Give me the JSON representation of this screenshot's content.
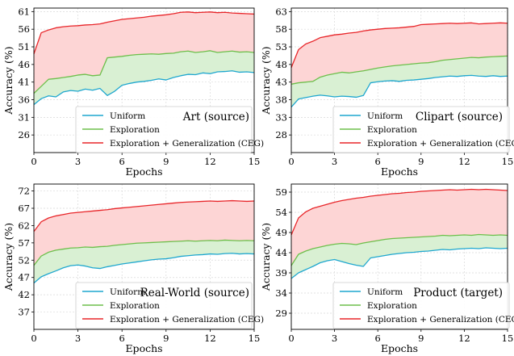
{
  "colors": {
    "uniform": "#1fa7cf",
    "exploration": "#6dbf4b",
    "ceg": "#e8262a",
    "fill_upper": "#fdd5d5",
    "fill_lower": "#d9f0d3"
  },
  "chart_data": [
    {
      "type": "line",
      "title": "Art (source)",
      "xlabel": "Epochs",
      "ylabel": "Accuracy (%)",
      "xlim": [
        0,
        15
      ],
      "ylim": [
        21,
        62
      ],
      "xticks": [
        0,
        3,
        6,
        9,
        12,
        15
      ],
      "yticks": [
        26,
        31,
        36,
        41,
        46,
        51,
        56,
        61
      ],
      "grid": true,
      "legend_position": "lower-left",
      "fill_between_series": true,
      "series": [
        {
          "name": "Uniform",
          "color_key": "uniform",
          "x": [
            0,
            0.5,
            1,
            1.5,
            2,
            2.5,
            3,
            3.5,
            4,
            4.5,
            5,
            5.5,
            6,
            6.5,
            7,
            7.5,
            8,
            8.5,
            9,
            9.5,
            10,
            10.5,
            11,
            11.5,
            12,
            12.5,
            13,
            13.5,
            14,
            14.5,
            15
          ],
          "y": [
            34.6,
            36.3,
            37.1,
            36.8,
            38.2,
            38.6,
            38.4,
            39.0,
            38.7,
            39.2,
            37.2,
            38.4,
            40.1,
            40.6,
            41.0,
            41.2,
            41.5,
            41.9,
            41.6,
            42.3,
            42.8,
            43.2,
            43.1,
            43.6,
            43.4,
            43.9,
            44.0,
            44.2,
            43.8,
            43.9,
            43.7
          ]
        },
        {
          "name": "Exploration",
          "color_key": "exploration",
          "x": [
            0,
            0.5,
            1,
            1.5,
            2,
            2.5,
            3,
            3.5,
            4,
            4.5,
            5,
            5.5,
            6,
            6.5,
            7,
            7.5,
            8,
            8.5,
            9,
            9.5,
            10,
            10.5,
            11,
            11.5,
            12,
            12.5,
            13,
            13.5,
            14,
            14.5,
            15
          ],
          "y": [
            37.8,
            39.8,
            41.8,
            42.0,
            42.3,
            42.6,
            43.0,
            43.2,
            42.8,
            43.0,
            47.9,
            48.1,
            48.3,
            48.6,
            48.8,
            48.9,
            49.0,
            48.9,
            49.1,
            49.2,
            49.6,
            49.8,
            49.4,
            49.6,
            49.9,
            49.4,
            49.6,
            49.8,
            49.5,
            49.6,
            49.4
          ]
        },
        {
          "name": "Exploration + Generalization (CEG)",
          "color_key": "ceg",
          "x": [
            0,
            0.5,
            1,
            1.5,
            2,
            2.5,
            3,
            3.5,
            4,
            4.5,
            5,
            5.5,
            6,
            6.5,
            7,
            7.5,
            8,
            8.5,
            9,
            9.5,
            10,
            10.5,
            11,
            11.5,
            12,
            12.5,
            13,
            13.5,
            14,
            14.5,
            15
          ],
          "y": [
            49.0,
            55.0,
            55.8,
            56.4,
            56.7,
            56.9,
            57.0,
            57.2,
            57.3,
            57.5,
            58.0,
            58.4,
            58.8,
            59.0,
            59.2,
            59.4,
            59.7,
            59.9,
            60.1,
            60.4,
            60.8,
            60.9,
            60.7,
            60.8,
            60.9,
            60.7,
            60.8,
            60.6,
            60.5,
            60.4,
            60.3
          ]
        }
      ]
    },
    {
      "type": "line",
      "title": "Clipart (source)",
      "xlabel": "Epochs",
      "ylabel": "Accuracy (%)",
      "xlim": [
        0,
        15
      ],
      "ylim": [
        23,
        64
      ],
      "xticks": [
        0,
        3,
        6,
        9,
        12,
        15
      ],
      "yticks": [
        28,
        33,
        38,
        43,
        48,
        53,
        58,
        63
      ],
      "grid": true,
      "legend_position": "lower-left",
      "fill_between_series": true,
      "series": [
        {
          "name": "Uniform",
          "color_key": "uniform",
          "x": [
            0,
            0.5,
            1,
            1.5,
            2,
            2.5,
            3,
            3.5,
            4,
            4.5,
            5,
            5.5,
            6,
            6.5,
            7,
            7.5,
            8,
            8.5,
            9,
            9.5,
            10,
            10.5,
            11,
            11.5,
            12,
            12.5,
            13,
            13.5,
            14,
            14.5,
            15
          ],
          "y": [
            35.9,
            38.2,
            38.6,
            39.0,
            39.3,
            39.1,
            38.8,
            39.0,
            38.9,
            38.7,
            39.2,
            42.8,
            43.1,
            43.3,
            43.4,
            43.2,
            43.5,
            43.6,
            43.8,
            44.0,
            44.3,
            44.5,
            44.7,
            44.6,
            44.8,
            44.9,
            44.7,
            44.6,
            44.8,
            44.6,
            44.7
          ]
        },
        {
          "name": "Exploration",
          "color_key": "exploration",
          "x": [
            0,
            0.5,
            1,
            1.5,
            2,
            2.5,
            3,
            3.5,
            4,
            4.5,
            5,
            5.5,
            6,
            6.5,
            7,
            7.5,
            8,
            8.5,
            9,
            9.5,
            10,
            10.5,
            11,
            11.5,
            12,
            12.5,
            13,
            13.5,
            14,
            14.5,
            15
          ],
          "y": [
            42.4,
            42.8,
            43.0,
            43.2,
            44.4,
            45.0,
            45.4,
            45.8,
            45.6,
            45.9,
            46.2,
            46.6,
            47.0,
            47.3,
            47.6,
            47.8,
            48.0,
            48.2,
            48.4,
            48.5,
            48.8,
            49.2,
            49.4,
            49.6,
            49.8,
            50.0,
            49.9,
            50.1,
            50.2,
            50.3,
            50.4
          ]
        },
        {
          "name": "Exploration + Generalization (CEG)",
          "color_key": "ceg",
          "x": [
            0,
            0.5,
            1,
            1.5,
            2,
            2.5,
            3,
            3.5,
            4,
            4.5,
            5,
            5.5,
            6,
            6.5,
            7,
            7.5,
            8,
            8.5,
            9,
            9.5,
            10,
            10.5,
            11,
            11.5,
            12,
            12.5,
            13,
            13.5,
            14,
            14.5,
            15
          ],
          "y": [
            47.1,
            52.2,
            53.8,
            54.6,
            55.6,
            56.0,
            56.4,
            56.6,
            56.9,
            57.1,
            57.5,
            57.8,
            58.0,
            58.2,
            58.3,
            58.4,
            58.6,
            58.8,
            59.3,
            59.4,
            59.5,
            59.6,
            59.7,
            59.6,
            59.7,
            59.8,
            59.5,
            59.6,
            59.7,
            59.8,
            59.7
          ]
        }
      ]
    },
    {
      "type": "line",
      "title": "Real-World (source)",
      "xlabel": "Epochs",
      "ylabel": "Accuracy (%)",
      "xlim": [
        0,
        15
      ],
      "ylim": [
        32,
        74
      ],
      "xticks": [
        0,
        3,
        6,
        9,
        12,
        15
      ],
      "yticks": [
        37,
        42,
        47,
        52,
        57,
        62,
        67,
        72
      ],
      "grid": true,
      "legend_position": "lower-left",
      "fill_between_series": true,
      "series": [
        {
          "name": "Uniform",
          "color_key": "uniform",
          "x": [
            0,
            0.5,
            1,
            1.5,
            2,
            2.5,
            3,
            3.5,
            4,
            4.5,
            5,
            5.5,
            6,
            6.5,
            7,
            7.5,
            8,
            8.5,
            9,
            9.5,
            10,
            10.5,
            11,
            11.5,
            12,
            12.5,
            13,
            13.5,
            14,
            14.5,
            15
          ],
          "y": [
            45.4,
            47.2,
            48.1,
            48.9,
            49.8,
            50.4,
            50.6,
            50.3,
            49.8,
            49.6,
            50.1,
            50.5,
            50.9,
            51.2,
            51.5,
            51.8,
            52.1,
            52.3,
            52.4,
            52.7,
            53.1,
            53.3,
            53.5,
            53.6,
            53.8,
            53.7,
            53.9,
            54.0,
            53.8,
            53.9,
            53.8
          ]
        },
        {
          "name": "Exploration",
          "color_key": "exploration",
          "x": [
            0,
            0.5,
            1,
            1.5,
            2,
            2.5,
            3,
            3.5,
            4,
            4.5,
            5,
            5.5,
            6,
            6.5,
            7,
            7.5,
            8,
            8.5,
            9,
            9.5,
            10,
            10.5,
            11,
            11.5,
            12,
            12.5,
            13,
            13.5,
            14,
            14.5,
            15
          ],
          "y": [
            50.5,
            53.2,
            54.3,
            54.9,
            55.2,
            55.5,
            55.6,
            55.8,
            55.7,
            55.9,
            56.0,
            56.3,
            56.5,
            56.7,
            56.9,
            57.0,
            57.1,
            57.2,
            57.3,
            57.4,
            57.5,
            57.6,
            57.5,
            57.6,
            57.7,
            57.6,
            57.8,
            57.7,
            57.6,
            57.7,
            57.6
          ]
        },
        {
          "name": "Exploration + Generalization (CEG)",
          "color_key": "ceg",
          "x": [
            0,
            0.5,
            1,
            1.5,
            2,
            2.5,
            3,
            3.5,
            4,
            4.5,
            5,
            5.5,
            6,
            6.5,
            7,
            7.5,
            8,
            8.5,
            9,
            9.5,
            10,
            10.5,
            11,
            11.5,
            12,
            12.5,
            13,
            13.5,
            14,
            14.5,
            15
          ],
          "y": [
            60.3,
            63.1,
            64.2,
            64.8,
            65.2,
            65.6,
            65.8,
            66.0,
            66.2,
            66.4,
            66.6,
            66.9,
            67.1,
            67.3,
            67.5,
            67.7,
            67.9,
            68.1,
            68.3,
            68.5,
            68.7,
            68.8,
            68.9,
            69.0,
            69.1,
            69.0,
            69.1,
            69.2,
            69.1,
            69.0,
            69.1
          ]
        }
      ]
    },
    {
      "type": "line",
      "title": "Product (target)",
      "xlabel": "Epochs",
      "ylabel": "Accuracy (%)",
      "xlim": [
        0,
        15
      ],
      "ylim": [
        25,
        61
      ],
      "xticks": [
        0,
        3,
        6,
        9,
        12,
        15
      ],
      "yticks": [
        29,
        34,
        39,
        44,
        49,
        54,
        59
      ],
      "grid": true,
      "legend_position": "lower-left",
      "fill_between_series": true,
      "series": [
        {
          "name": "Uniform",
          "color_key": "uniform",
          "x": [
            0,
            0.5,
            1,
            1.5,
            2,
            2.5,
            3,
            3.5,
            4,
            4.5,
            5,
            5.5,
            6,
            6.5,
            7,
            7.5,
            8,
            8.5,
            9,
            9.5,
            10,
            10.5,
            11,
            11.5,
            12,
            12.5,
            13,
            13.5,
            14,
            14.5,
            15
          ],
          "y": [
            37.6,
            39.0,
            39.8,
            40.6,
            41.5,
            42.0,
            42.3,
            41.8,
            41.3,
            40.9,
            40.6,
            42.7,
            43.0,
            43.3,
            43.6,
            43.8,
            44.0,
            44.1,
            44.3,
            44.4,
            44.6,
            44.8,
            44.7,
            44.9,
            45.0,
            45.1,
            45.0,
            45.2,
            45.1,
            45.0,
            45.1
          ]
        },
        {
          "name": "Exploration",
          "color_key": "exploration",
          "x": [
            0,
            0.5,
            1,
            1.5,
            2,
            2.5,
            3,
            3.5,
            4,
            4.5,
            5,
            5.5,
            6,
            6.5,
            7,
            7.5,
            8,
            8.5,
            9,
            9.5,
            10,
            10.5,
            11,
            11.5,
            12,
            12.5,
            13,
            13.5,
            14,
            14.5,
            15
          ],
          "y": [
            40.8,
            43.6,
            44.4,
            45.0,
            45.4,
            45.8,
            46.1,
            46.3,
            46.2,
            46.0,
            46.4,
            46.7,
            47.0,
            47.3,
            47.5,
            47.6,
            47.7,
            47.8,
            47.9,
            48.0,
            48.1,
            48.3,
            48.2,
            48.3,
            48.4,
            48.3,
            48.5,
            48.4,
            48.3,
            48.4,
            48.3
          ]
        },
        {
          "name": "Exploration + Generalization (CEG)",
          "color_key": "ceg",
          "x": [
            0,
            0.5,
            1,
            1.5,
            2,
            2.5,
            3,
            3.5,
            4,
            4.5,
            5,
            5.5,
            6,
            6.5,
            7,
            7.5,
            8,
            8.5,
            9,
            9.5,
            10,
            10.5,
            11,
            11.5,
            12,
            12.5,
            13,
            13.5,
            14,
            14.5,
            15
          ],
          "y": [
            48.4,
            52.6,
            54.1,
            55.0,
            55.5,
            56.0,
            56.5,
            56.9,
            57.2,
            57.5,
            57.7,
            58.0,
            58.2,
            58.4,
            58.6,
            58.7,
            58.9,
            59.0,
            59.2,
            59.3,
            59.4,
            59.5,
            59.6,
            59.5,
            59.6,
            59.7,
            59.6,
            59.7,
            59.6,
            59.5,
            59.4
          ]
        }
      ]
    }
  ]
}
